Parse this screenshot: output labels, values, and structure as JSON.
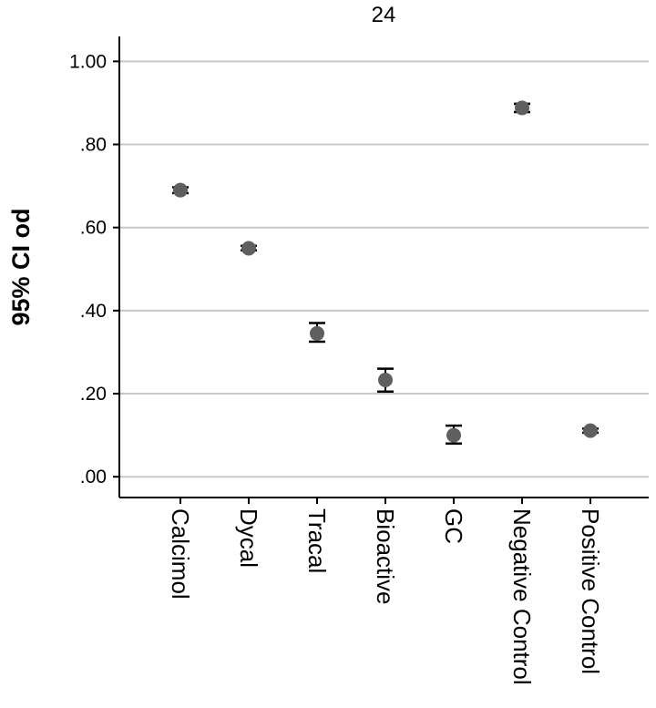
{
  "chart_data": {
    "type": "scatter",
    "title": "24",
    "xlabel": "",
    "ylabel": "95% CI od",
    "categories": [
      "Calcimol",
      "Dycal",
      "Tracal",
      "Bioactive",
      "GC",
      "Negative Control",
      "Positive Control"
    ],
    "series": [
      {
        "mean": [
          0.69,
          0.55,
          0.345,
          0.233,
          0.1,
          0.888,
          0.111
        ],
        "ci_lower": [
          0.683,
          0.545,
          0.325,
          0.205,
          0.08,
          0.878,
          0.106
        ],
        "ci_upper": [
          0.697,
          0.556,
          0.37,
          0.26,
          0.123,
          0.898,
          0.116
        ]
      }
    ],
    "yticks": [
      0.0,
      0.2,
      0.4,
      0.6,
      0.8,
      1.0
    ],
    "ytick_labels": [
      ".00",
      ".20",
      ".40",
      ".60",
      ".80",
      "1.00"
    ],
    "ylim": [
      -0.05,
      1.06
    ],
    "grid": true,
    "colors": {
      "marker": "#5f5f5f",
      "errorbar": "#000000",
      "grid": "#c8c8c8",
      "axis": "#000000"
    }
  }
}
